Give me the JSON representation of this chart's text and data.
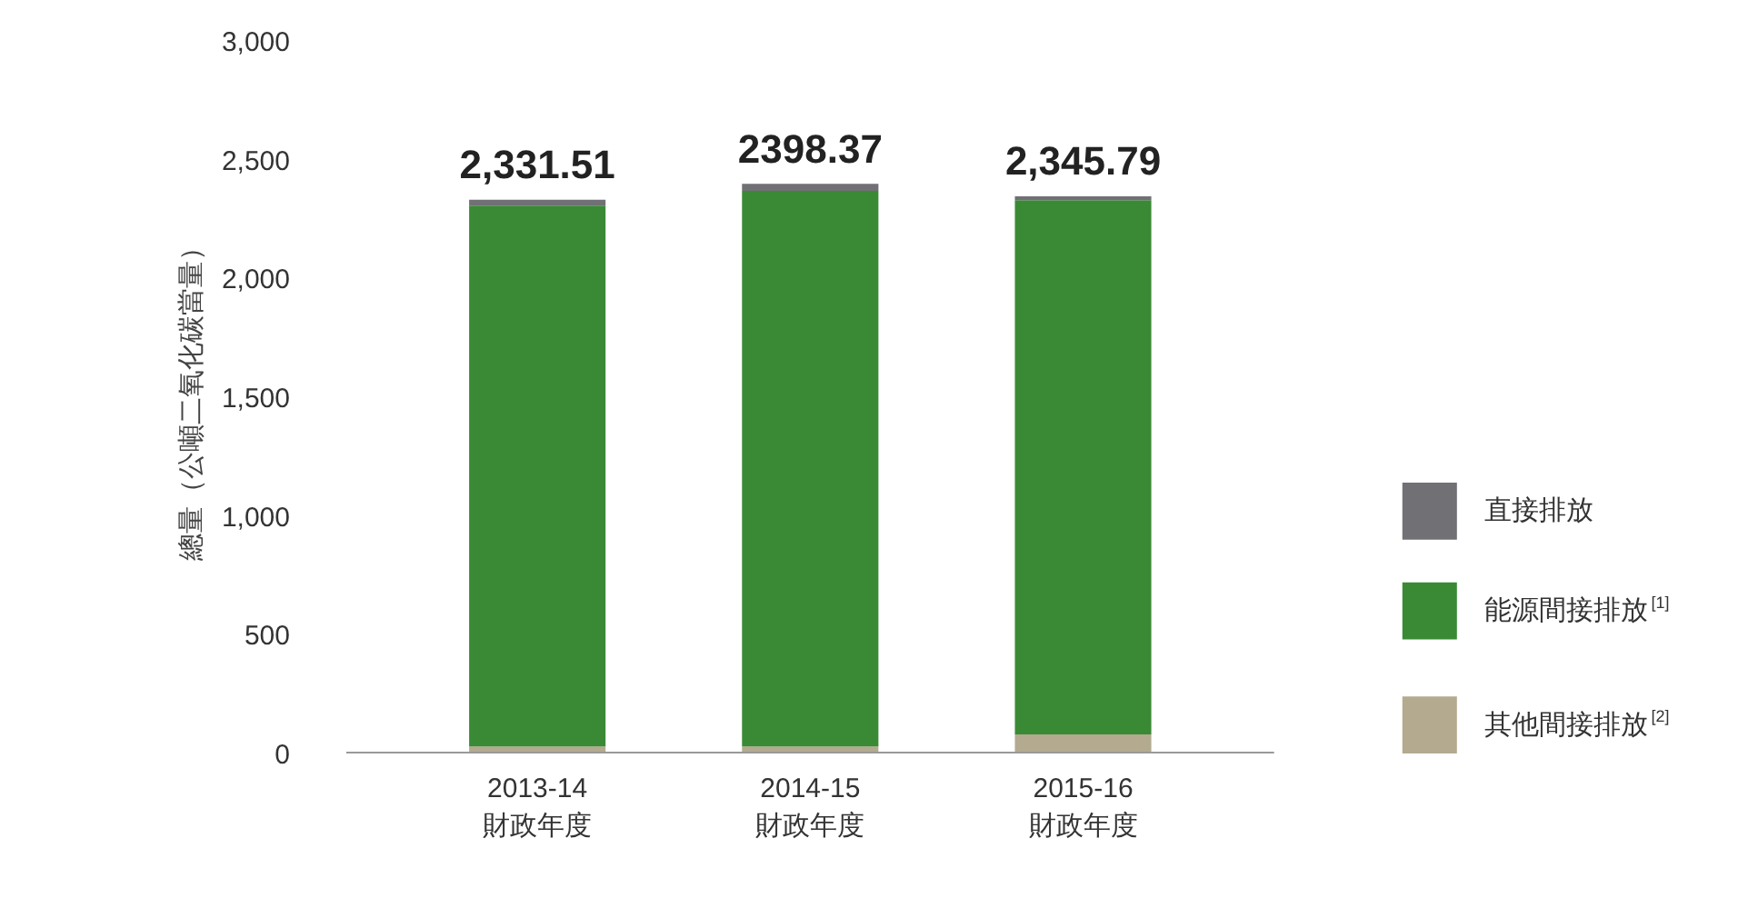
{
  "chart_data": {
    "type": "bar",
    "stacked": true,
    "ylabel": "總量（公噸二氧化碳當量）",
    "categories": [
      "2013-14\n財政年度",
      "2014-15\n財政年度",
      "2015-16\n財政年度"
    ],
    "series": [
      {
        "name": "其他間接排放$^{[2]}$",
        "color": "#b3aa90",
        "values": [
          30,
          30,
          80
        ]
      },
      {
        "name": "能源間接排放$^{[1]}$",
        "color": "#3a8a35",
        "values": [
          2276.51,
          2338.37,
          2249.79
        ]
      },
      {
        "name": "直接排放",
        "color": "#707075",
        "values": [
          25,
          30,
          16
        ]
      }
    ],
    "totals": [
      "2,331.51",
      "2398.37",
      "2,345.79"
    ],
    "ylim": [
      0,
      3000
    ],
    "yticks": [
      0,
      {
        "value": 500,
        "label": "500"
      },
      {
        "value": 1000,
        "label": "1,000"
      },
      {
        "value": 1500,
        "label": "1,500"
      },
      {
        "value": 2000,
        "label": "2,000"
      },
      {
        "value": 2500,
        "label": "2,500"
      },
      {
        "value": 3000,
        "label": "3,000"
      }
    ],
    "grid": false,
    "legend": "right"
  }
}
